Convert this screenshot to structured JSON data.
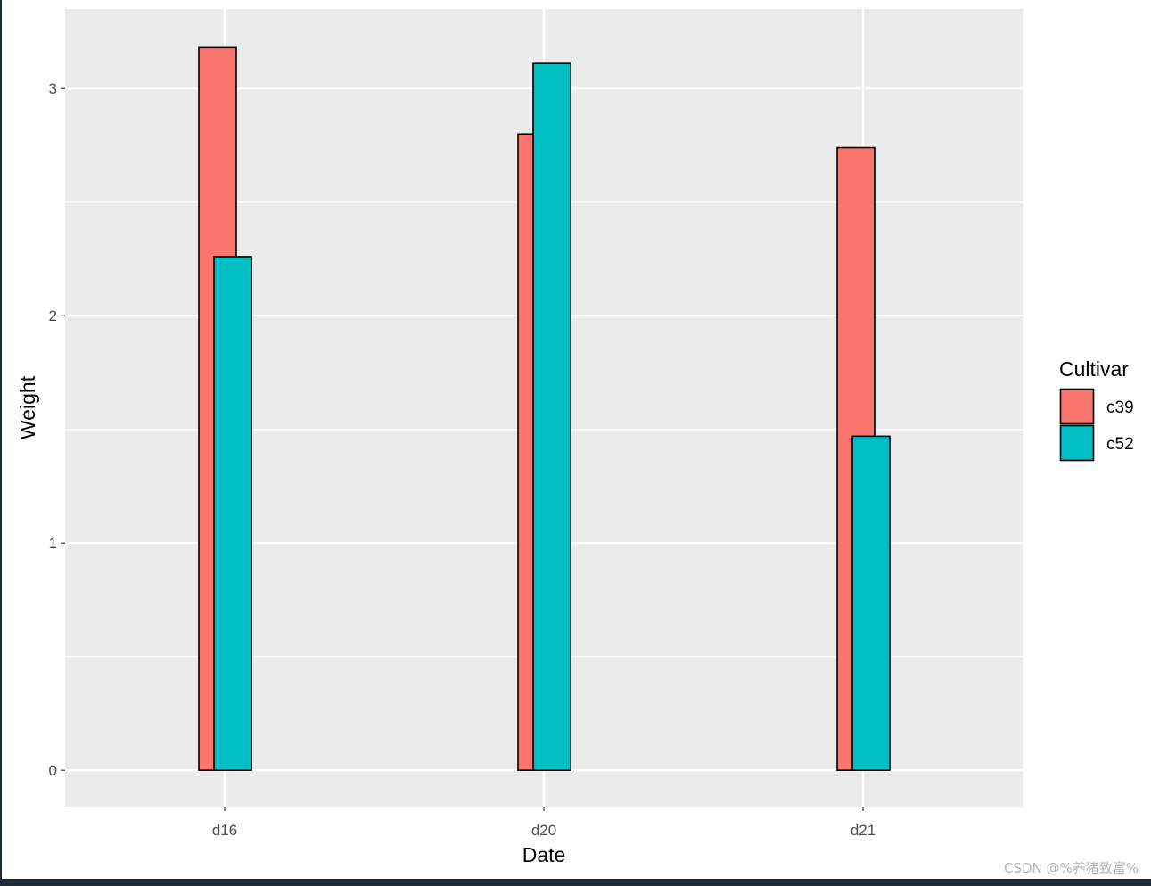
{
  "chart_data": {
    "type": "bar",
    "title": "",
    "xlabel": "Date",
    "ylabel": "Weight",
    "categories": [
      "d16",
      "d20",
      "d21"
    ],
    "series": [
      {
        "name": "c39",
        "values": [
          3.18,
          2.8,
          2.74
        ],
        "color": "#F8766D"
      },
      {
        "name": "c52",
        "values": [
          2.26,
          3.11,
          1.47
        ],
        "color": "#00BFC4"
      }
    ],
    "ylim": [
      -0.16,
      3.35
    ],
    "yticks": [
      0,
      1,
      2,
      3
    ],
    "grid": true,
    "bar_position": "overlapping dodge",
    "legend": {
      "title": "Cultivar",
      "position": "right"
    },
    "panel_background": "#EBEBEB",
    "bar_outline": "#000000"
  },
  "watermark": "CSDN @%养猪致富%"
}
